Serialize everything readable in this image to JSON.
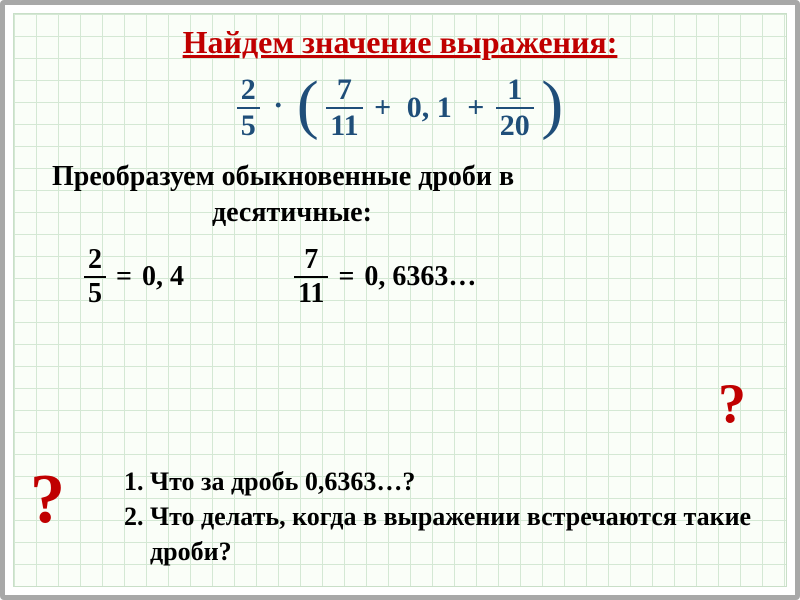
{
  "colors": {
    "title": "#c00000",
    "expr": "#1f4e79",
    "text": "#000000",
    "grid": "#d4e8d4",
    "frame": "#a8a8a8",
    "bg": "#fafef8"
  },
  "title": "Найдем значение выражения:",
  "main_expression": {
    "leading_frac": {
      "num": "2",
      "den": "5"
    },
    "dot": "·",
    "open_paren": "(",
    "term1_frac": {
      "num": "7",
      "den": "11"
    },
    "plus1": "+",
    "term2": "0, 1",
    "plus2": "+",
    "term3_frac": {
      "num": "1",
      "den": "20"
    },
    "close_paren": ")"
  },
  "subtitle_line1": "Преобразуем обыкновенные дроби в",
  "subtitle_line2": "десятичные:",
  "conversions": {
    "left": {
      "frac": {
        "num": "2",
        "den": "5"
      },
      "eq": "=",
      "result": "0, 4"
    },
    "right": {
      "frac": {
        "num": "7",
        "den": "11"
      },
      "eq": "=",
      "result": "0, 6363",
      "ellipsis": "…"
    }
  },
  "qmark": "?",
  "questions": [
    "Что за дробь 0,6363…?",
    "Что делать, когда в выражении встречаются такие дроби?"
  ]
}
